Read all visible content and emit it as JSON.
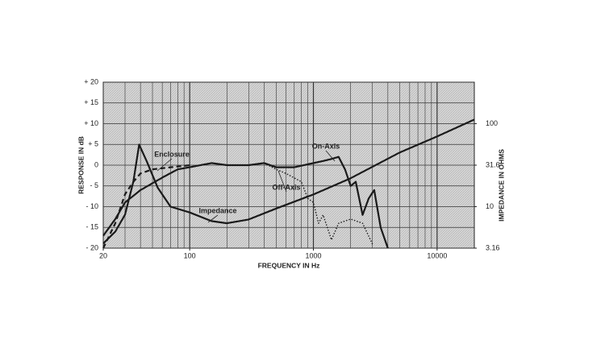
{
  "chart_data": {
    "type": "line",
    "xlabel": "FREQUENCY IN Hz",
    "ylabel": "RESPONSE IN dB",
    "y2label": "IMPEDANCE IN OHMS",
    "xscale": "log",
    "xlim": [
      20,
      20000
    ],
    "xticks": [
      20,
      100,
      1000,
      10000
    ],
    "ylim": [
      -20,
      20
    ],
    "yticks": [
      {
        "value": -20,
        "label": "- 20"
      },
      {
        "value": -15,
        "label": "- 15"
      },
      {
        "value": -10,
        "label": "- 10"
      },
      {
        "value": -5,
        "label": "- 5"
      },
      0,
      {
        "value": 5,
        "label": "+ 5"
      },
      {
        "value": 10,
        "label": "+ 10"
      },
      {
        "value": 15,
        "label": "+ 15"
      },
      {
        "value": 20,
        "label": "+ 20"
      }
    ],
    "y2scale": "log",
    "y2lim": [
      3.16,
      316
    ],
    "y2ticks": [
      3.16,
      10,
      31.6,
      100
    ],
    "grid": true,
    "series": [
      {
        "name": "On-Axis",
        "color": "#1a1a1a",
        "style": "solid",
        "x": [
          20,
          25,
          30,
          40,
          60,
          80,
          100,
          150,
          200,
          300,
          400,
          500,
          700,
          1000,
          1200,
          1400,
          1600,
          1800,
          2000,
          2200,
          2500,
          2800,
          3100,
          3500,
          4000
        ],
        "values": [
          -17,
          -13,
          -9,
          -6,
          -3,
          -1,
          -0.5,
          0.5,
          0,
          0,
          0.5,
          -0.5,
          -0.5,
          0.5,
          1,
          1.5,
          2,
          -1,
          -5,
          -4,
          -12,
          -8,
          -6,
          -15,
          -20
        ]
      },
      {
        "name": "Off-Axis",
        "color": "#1a1a1a",
        "style": "dotted",
        "x": [
          400,
          500,
          600,
          800,
          900,
          1000,
          1100,
          1200,
          1400,
          1600,
          2000,
          2500,
          3000
        ],
        "values": [
          0.5,
          -1,
          -2,
          -4,
          -8,
          -9,
          -14,
          -12,
          -18,
          -14,
          -13,
          -14,
          -19
        ]
      },
      {
        "name": "Enclosure",
        "color": "#1a1a1a",
        "style": "dashed",
        "x": [
          20,
          25,
          30,
          35,
          40,
          50,
          70,
          100
        ],
        "values": [
          -20,
          -14,
          -7,
          -4,
          -2,
          -1,
          -0.5,
          0
        ]
      },
      {
        "name": "Impedance",
        "color": "#1a1a1a",
        "style": "solid",
        "axis": "y2",
        "x": [
          20,
          25,
          30,
          35,
          39,
          45,
          55,
          70,
          100,
          150,
          200,
          300,
          500,
          1000,
          2000,
          5000,
          10000,
          20000
        ],
        "values": [
          3.6,
          5,
          8,
          20,
          56,
          35,
          17,
          10,
          8.5,
          6.7,
          6.3,
          7,
          9.5,
          14,
          22,
          45,
          70,
          112
        ]
      }
    ]
  }
}
